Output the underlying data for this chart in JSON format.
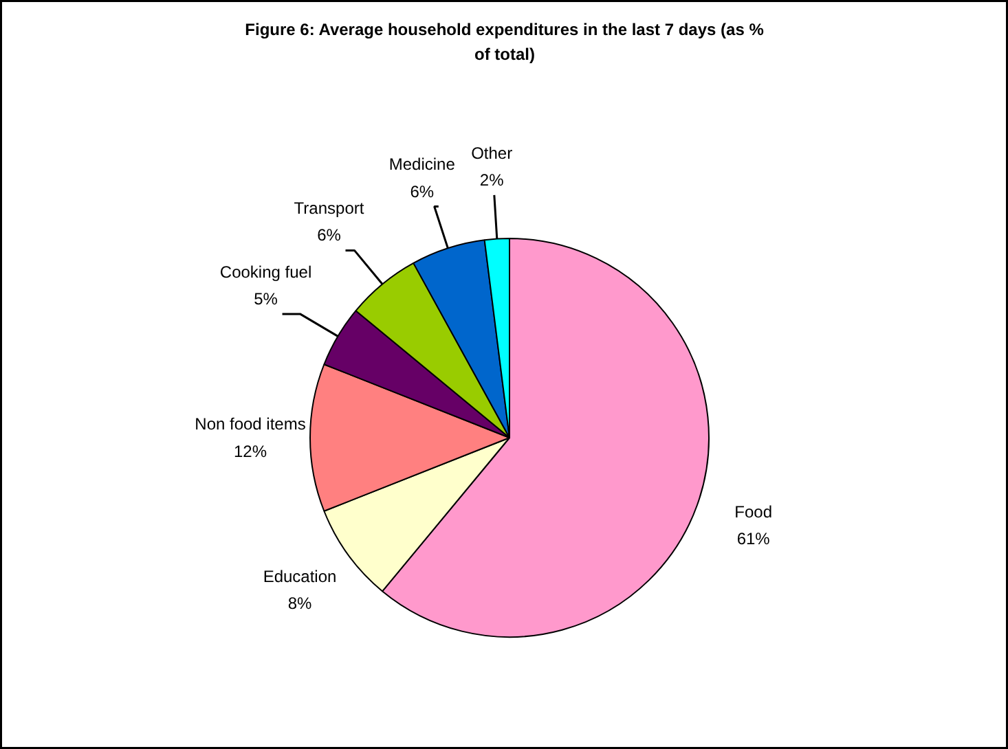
{
  "chart_data": {
    "type": "pie",
    "title": "Figure 6: Average household expenditures in the last 7 days (as % of total)",
    "categories": [
      "Food",
      "Education",
      "Non food items",
      "Cooking fuel",
      "Transport",
      "Medicine",
      "Other"
    ],
    "values": [
      61,
      8,
      12,
      5,
      6,
      6,
      2
    ],
    "colors": [
      "#ff99cc",
      "#ffffcc",
      "#ff8080",
      "#660066",
      "#99cc00",
      "#0066cc",
      "#00ffff"
    ],
    "value_labels": [
      "61%",
      "8%",
      "12%",
      "5%",
      "6%",
      "6%",
      "2%"
    ]
  }
}
